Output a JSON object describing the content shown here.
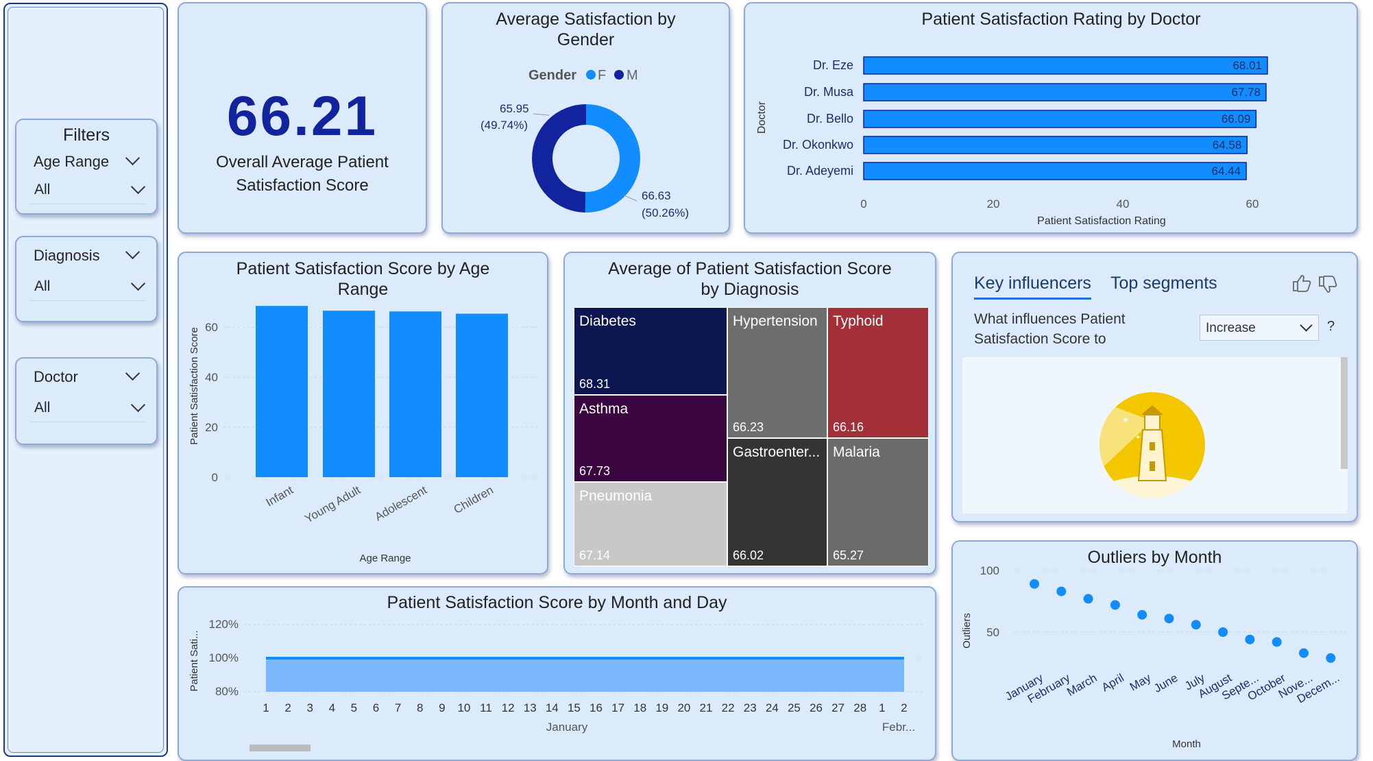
{
  "filters": {
    "title": "Filters",
    "age_range": {
      "label": "Age Range",
      "value": "All"
    },
    "diagnosis": {
      "label": "Diagnosis",
      "value": "All"
    },
    "doctor": {
      "label": "Doctor",
      "value": "All"
    }
  },
  "kpi": {
    "value": "66.21",
    "label_line1": "Overall Average Patient",
    "label_line2": "Satisfaction Score"
  },
  "gender_chart": {
    "title_line1": "Average Satisfaction by",
    "title_line2": "Gender",
    "legend_title": "Gender",
    "legend": [
      {
        "label": "F",
        "color": "#118dff"
      },
      {
        "label": "M",
        "color": "#12239e"
      }
    ],
    "slices": [
      {
        "name": "F",
        "value": 66.63,
        "pct": 50.26,
        "value_label": "66.63",
        "pct_label": "(50.26%)",
        "color": "#118dff"
      },
      {
        "name": "M",
        "value": 65.95,
        "pct": 49.74,
        "value_label": "65.95",
        "pct_label": "(49.74%)",
        "color": "#12239e"
      }
    ]
  },
  "doctor_chart": {
    "title": "Patient Satisfaction Rating by Doctor",
    "ylabel": "Doctor",
    "xlabel": "Patient Satisfaction Rating",
    "ticks": [
      "0",
      "20",
      "40",
      "60"
    ]
  },
  "age_chart": {
    "title_line1": "Patient Satisfaction Score by Age",
    "title_line2": "Range",
    "ylabel": "Patient Satisfaction Score",
    "xlabel": "Age Range"
  },
  "diagnosis_chart": {
    "title_line1": "Average of Patient Satisfaction Score",
    "title_line2": "by Diagnosis",
    "cells": [
      {
        "name": "Diabetes",
        "value": "68.31",
        "color": "#0c1650"
      },
      {
        "name": "Asthma",
        "value": "67.73",
        "color": "#3a0540"
      },
      {
        "name": "Pneumonia",
        "value": "67.14",
        "color": "#c8c8c8"
      },
      {
        "name": "Hypertension",
        "value": "66.23",
        "color": "#6e6e6e"
      },
      {
        "name": "Typhoid",
        "value": "66.16",
        "color": "#a33039"
      },
      {
        "name": "Gastroenter...",
        "value": "66.02",
        "color": "#343434"
      },
      {
        "name": "Malaria",
        "value": "65.27",
        "color": "#6b6b6b"
      }
    ]
  },
  "key_influencers": {
    "tab_active": "Key influencers",
    "tab_other": "Top segments",
    "question_line1": "What influences Patient",
    "question_line2": "Satisfaction Score to",
    "dropdown_value": "Increase",
    "help": "?"
  },
  "month_day_chart": {
    "title": "Patient Satisfaction Score by Month and Day",
    "ylabel": "Patient Sati...",
    "yticks": [
      "120%",
      "100%",
      "80%"
    ],
    "days": [
      "1",
      "2",
      "3",
      "4",
      "5",
      "6",
      "7",
      "8",
      "9",
      "10",
      "11",
      "12",
      "13",
      "14",
      "15",
      "16",
      "17",
      "18",
      "19",
      "20",
      "21",
      "22",
      "23",
      "24",
      "25",
      "26",
      "27",
      "28",
      "1",
      "2"
    ],
    "month_labels": [
      "January",
      "Febr..."
    ]
  },
  "outliers_chart": {
    "title": "Outliers by Month",
    "ylabel": "Outliers",
    "xlabel": "Month",
    "yticks": [
      "100",
      "50"
    ]
  },
  "chart_data": [
    {
      "type": "pie",
      "title": "Average Satisfaction by Gender",
      "categories": [
        "F",
        "M"
      ],
      "values": [
        66.63,
        65.95
      ],
      "percent": [
        50.26,
        49.74
      ]
    },
    {
      "type": "bar",
      "orientation": "horizontal",
      "title": "Patient Satisfaction Rating by Doctor",
      "categories": [
        "Dr. Eze",
        "Dr. Musa",
        "Dr. Bello",
        "Dr. Okonkwo",
        "Dr. Adeyemi"
      ],
      "values": [
        68.01,
        67.78,
        66.09,
        64.58,
        64.44
      ],
      "xlabel": "Patient Satisfaction Rating",
      "ylabel": "Doctor",
      "xlim": [
        0,
        68.01
      ]
    },
    {
      "type": "bar",
      "title": "Patient Satisfaction Score by Age Range",
      "categories": [
        "Infant",
        "Young Adult",
        "Adolescent",
        "Children"
      ],
      "values": [
        68.5,
        66.6,
        66.3,
        65.4
      ],
      "yticks": [
        0,
        20,
        40,
        60
      ],
      "xlabel": "Age Range",
      "ylabel": "Patient Satisfaction Score",
      "ylim": [
        0,
        70
      ]
    },
    {
      "type": "table",
      "subtype": "treemap",
      "title": "Average of Patient Satisfaction Score by Diagnosis",
      "categories": [
        "Diabetes",
        "Asthma",
        "Pneumonia",
        "Hypertension",
        "Typhoid",
        "Gastroenter...",
        "Malaria"
      ],
      "values": [
        68.31,
        67.73,
        67.14,
        66.23,
        66.16,
        66.02,
        65.27
      ]
    },
    {
      "type": "area",
      "title": "Patient Satisfaction Score by Month and Day",
      "x": [
        "1",
        "2",
        "3",
        "4",
        "5",
        "6",
        "7",
        "8",
        "9",
        "10",
        "11",
        "12",
        "13",
        "14",
        "15",
        "16",
        "17",
        "18",
        "19",
        "20",
        "21",
        "22",
        "23",
        "24",
        "25",
        "26",
        "27",
        "28",
        "1",
        "2"
      ],
      "values": [
        1,
        1,
        1,
        1,
        1,
        1,
        1,
        1,
        1,
        1,
        1,
        1,
        1,
        1,
        1,
        1,
        1,
        1,
        1,
        1,
        1,
        1,
        1,
        1,
        1,
        1,
        1,
        1,
        1,
        1
      ],
      "ylim": [
        0.8,
        1.2
      ],
      "ylabel": "Patient Sati..."
    },
    {
      "type": "scatter",
      "title": "Outliers by Month",
      "categories": [
        "January",
        "February",
        "March",
        "April",
        "May",
        "June",
        "July",
        "August",
        "Septe...",
        "October",
        "Nove...",
        "Decem..."
      ],
      "values": [
        89,
        83,
        77,
        72,
        64,
        61,
        56,
        50,
        44,
        42,
        33,
        29
      ],
      "yticks": [
        50,
        100
      ],
      "xlabel": "Month",
      "ylabel": "Outliers",
      "ylim": [
        20,
        105
      ]
    }
  ]
}
